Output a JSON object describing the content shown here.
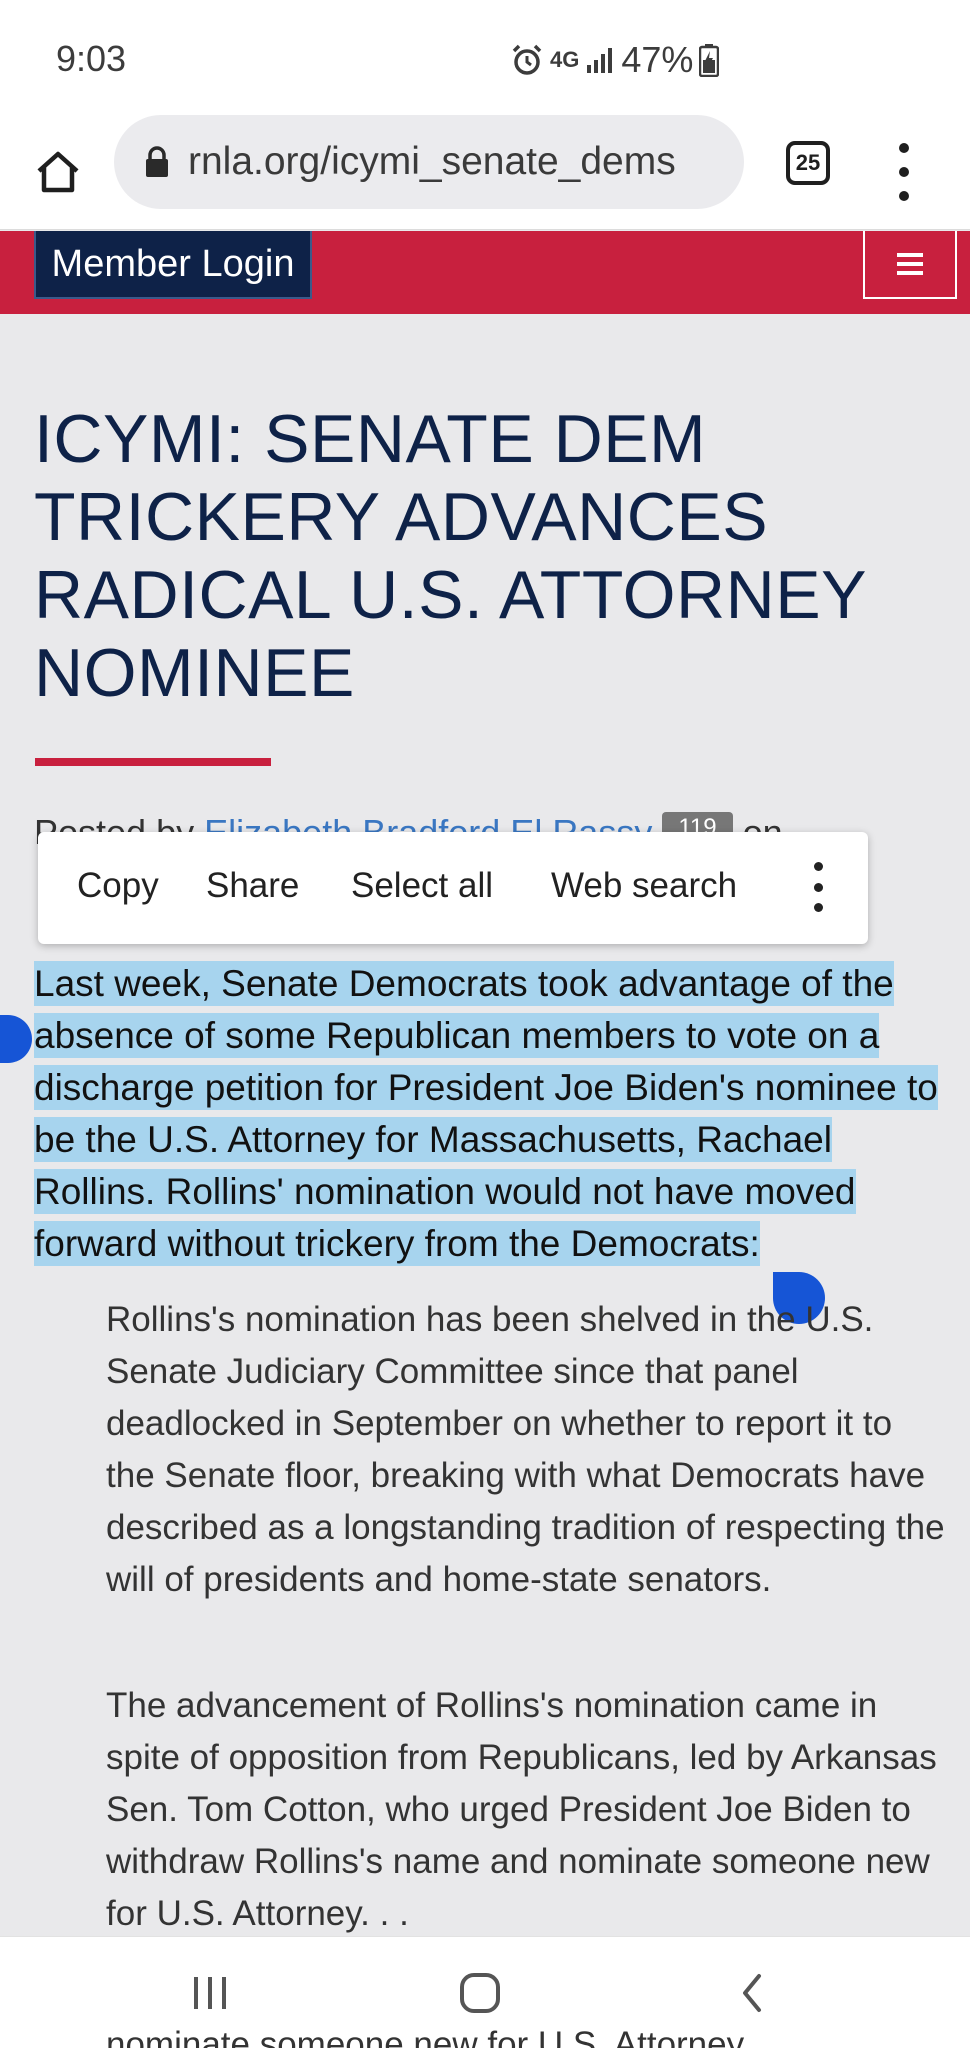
{
  "status_bar": {
    "time": "9:03",
    "network": "4G",
    "battery": "47%"
  },
  "browser": {
    "url": "rnla.org/icymi_senate_dems",
    "tab_count": "25"
  },
  "site_header": {
    "member_login": "Member Login",
    "accent_color": "#c8203e",
    "navy_color": "#0e2248"
  },
  "article": {
    "title": "ICYMI: SENATE DEM TRICKERY ADVANCES RADICAL U.S. ATTORNEY NOMINEE",
    "posted_by_prefix": "Posted by",
    "author": "Elizabeth Bradford El Rassy",
    "badge": "119",
    "posted_on": "on",
    "selected_paragraph": "Last week, Senate Democrats took advantage of the absence of some Republican members to vote on a discharge petition for President Joe Biden's nominee to be the U.S. Attorney for Massachusetts, Rachael Rollins. Rollins' nomination would not have moved forward without trickery from the Democrats:",
    "quote_1": "Rollins's nomination has been shelved in the U.S. Senate Judiciary Committee since that panel deadlocked in September on whether to report it to the Senate floor, breaking with what Democrats have described as a longstanding tradition of respecting the will of presidents and home-state senators.",
    "quote_2": "The advancement of Rollins's nomination came in spite of opposition from Republicans, led by Arkansas Sen. Tom Cotton, who urged President Joe Biden to withdraw Rollins's name and nominate someone new for U.S. Attorney. . .",
    "obscured_text": "nominate someone new for U.S. Attorney"
  },
  "context_menu": {
    "copy": "Copy",
    "share": "Share",
    "select_all": "Select all",
    "web_search": "Web search"
  },
  "icons": [
    "alarm-icon",
    "signal-icon",
    "battery-icon",
    "home-icon",
    "lock-icon",
    "tabs-icon",
    "more-icon",
    "hamburger-icon",
    "recents-icon",
    "home-nav-icon",
    "back-icon"
  ]
}
